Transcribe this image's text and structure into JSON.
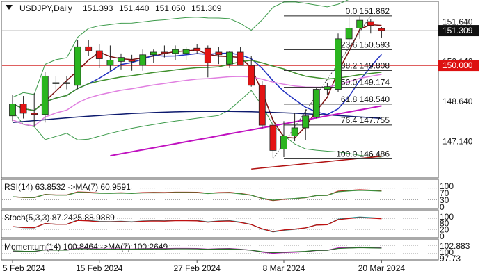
{
  "chart_data": {
    "type": "candlestick",
    "symbol_header": "USDJPY,Daily",
    "ohlc_header": [
      "151.393",
      "151.440",
      "151.050",
      "151.309"
    ],
    "last_price": "151.309",
    "red_level": "150.000",
    "price_axis": {
      "labels": [
        "151.640",
        "150.140",
        "148.640",
        "147.140"
      ],
      "ylim": [
        146.0,
        152.2
      ]
    },
    "x_labels": [
      "5 Feb 2024",
      "15 Feb 2024",
      "27 Feb 2024",
      "8 Mar 2024",
      "20 Mar 2024"
    ],
    "x_label_index": [
      0,
      8,
      17,
      25,
      34
    ],
    "candles": [
      {
        "o": 148.1,
        "h": 148.9,
        "l": 147.9,
        "c": 148.55
      },
      {
        "o": 148.55,
        "h": 148.85,
        "l": 148.0,
        "c": 148.2
      },
      {
        "o": 148.2,
        "h": 148.95,
        "l": 147.7,
        "c": 148.15
      },
      {
        "o": 148.15,
        "h": 149.75,
        "l": 147.85,
        "c": 149.6
      },
      {
        "o": 149.35,
        "h": 149.6,
        "l": 149.1,
        "c": 149.35
      },
      {
        "o": 149.35,
        "h": 149.6,
        "l": 149.1,
        "c": 149.35
      },
      {
        "o": 149.25,
        "h": 150.95,
        "l": 149.1,
        "c": 150.7
      },
      {
        "o": 150.7,
        "h": 150.95,
        "l": 150.35,
        "c": 150.55
      },
      {
        "o": 150.55,
        "h": 150.8,
        "l": 149.9,
        "c": 150.25
      },
      {
        "o": 150.0,
        "h": 150.75,
        "l": 149.8,
        "c": 150.2
      },
      {
        "o": 150.15,
        "h": 150.45,
        "l": 149.85,
        "c": 150.3
      },
      {
        "o": 150.2,
        "h": 150.4,
        "l": 149.8,
        "c": 150.15
      },
      {
        "o": 150.0,
        "h": 150.6,
        "l": 149.8,
        "c": 150.4
      },
      {
        "o": 150.4,
        "h": 150.6,
        "l": 150.1,
        "c": 150.5
      },
      {
        "o": 150.5,
        "h": 150.75,
        "l": 150.3,
        "c": 150.45
      },
      {
        "o": 150.45,
        "h": 150.75,
        "l": 150.2,
        "c": 150.6
      },
      {
        "o": 150.45,
        "h": 150.7,
        "l": 150.2,
        "c": 150.6
      },
      {
        "o": 150.65,
        "h": 150.8,
        "l": 150.45,
        "c": 150.55
      },
      {
        "o": 150.65,
        "h": 150.75,
        "l": 149.55,
        "c": 150.1
      },
      {
        "o": 150.5,
        "h": 150.7,
        "l": 150.05,
        "c": 150.4
      },
      {
        "o": 150.05,
        "h": 150.55,
        "l": 149.9,
        "c": 150.5
      },
      {
        "o": 150.5,
        "h": 150.7,
        "l": 150.0,
        "c": 150.0
      },
      {
        "o": 150.0,
        "h": 150.35,
        "l": 149.2,
        "c": 149.25
      },
      {
        "o": 149.25,
        "h": 149.4,
        "l": 147.6,
        "c": 147.75
      },
      {
        "o": 147.75,
        "h": 148.1,
        "l": 146.5,
        "c": 146.8
      },
      {
        "o": 146.85,
        "h": 147.9,
        "l": 146.55,
        "c": 147.35
      },
      {
        "o": 147.35,
        "h": 148.2,
        "l": 147.15,
        "c": 147.65
      },
      {
        "o": 147.65,
        "h": 148.35,
        "l": 147.2,
        "c": 148.1
      },
      {
        "o": 148.05,
        "h": 149.15,
        "l": 148.0,
        "c": 149.1
      },
      {
        "o": 149.1,
        "h": 149.35,
        "l": 148.9,
        "c": 149.2
      },
      {
        "o": 149.1,
        "h": 151.2,
        "l": 149.0,
        "c": 151.0
      },
      {
        "o": 151.0,
        "h": 151.8,
        "l": 150.7,
        "c": 151.4
      },
      {
        "o": 151.4,
        "h": 151.85,
        "l": 151.0,
        "c": 151.7
      },
      {
        "o": 151.65,
        "h": 151.75,
        "l": 151.2,
        "c": 151.5
      },
      {
        "o": 151.39,
        "h": 151.44,
        "l": 151.05,
        "c": 151.31
      }
    ],
    "fibonacci": [
      {
        "label": "0.0 151.862",
        "price": 151.862
      },
      {
        "label": "23.6 150.593",
        "price": 150.593
      },
      {
        "label": "38.2 149.808",
        "price": 149.808
      },
      {
        "label": "50.0 149.174",
        "price": 149.174
      },
      {
        "label": "61.8 148.540",
        "price": 148.54
      },
      {
        "label": "76.4 147.755",
        "price": 147.755
      },
      {
        "label": "100.0 146.486",
        "price": 146.486
      }
    ],
    "overlay_colors": {
      "up": "#2bb51f",
      "down": "#e31414",
      "bollinger": "#3c9a4a",
      "ma_fast": "#7b1010",
      "ma_blue": "#1f2fbf",
      "ma_green": "#3f8f2c",
      "ma_pink": "#e07fe0",
      "ma_magenta": "#c011c0",
      "ma_navy": "#0d1a6e",
      "ma_red": "#b01010",
      "red_line": "#cc0000",
      "label_bg": "#111111",
      "red_label_bg": "#dd1111"
    },
    "panels": [
      {
        "header": "RSI(14) 63.8532 ->MA(7) 60.9591",
        "labels": [
          "100",
          "70",
          "30",
          "0"
        ]
      },
      {
        "header": "Stoch(5,3,3) 87.2425 88.9889",
        "labels": [
          "100",
          "80",
          "20",
          "0"
        ]
      },
      {
        "header": "Momentum(14) 100.8464 ->MA(7) 100.2649",
        "labels": [
          "102.883",
          "100",
          "97.73"
        ]
      }
    ]
  }
}
